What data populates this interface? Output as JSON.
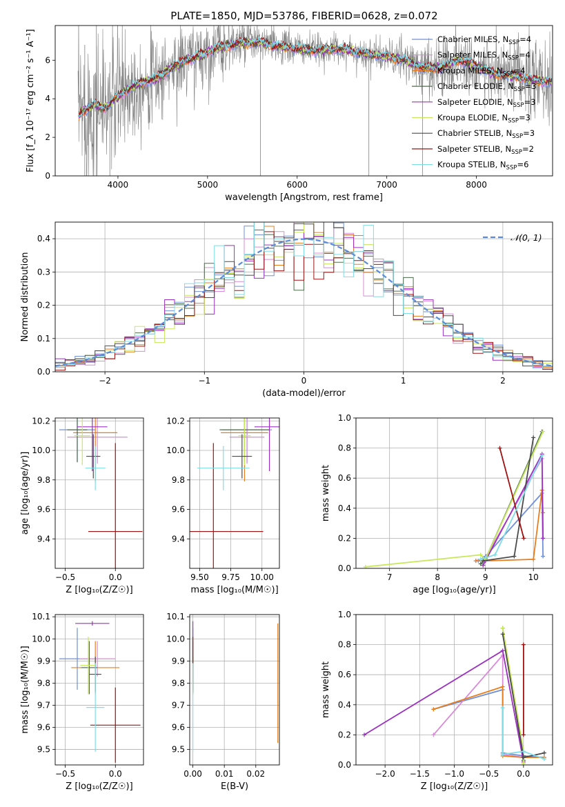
{
  "figure_title": "PLATE=1850, MJD=53786, FIBERID=0628, z=0.072",
  "colors": {
    "Chabrier MILES": "#6f8fd8",
    "Salpeter MILES": "#d98ad9",
    "Kroupa MILES": "#e87d1e",
    "Chabrier ELODIE": "#4d6b4d",
    "Salpeter ELODIE": "#9b30c0",
    "Kroupa ELODIE": "#c8e85a",
    "Chabrier STELIB": "#4a4a4a",
    "Salpeter STELIB": "#a01010",
    "Kroupa STELIB": "#7fdde8",
    "spectrum": "#808080",
    "normal": "#5b8bd8"
  },
  "chart_data": [
    {
      "id": "spectrum",
      "type": "line",
      "title": "PLATE=1850, MJD=53786, FIBERID=0628, z=0.072",
      "xlabel": "wavelength [Angstrom, rest frame]",
      "ylabel": "Flux [f_λ 10⁻¹⁷ erg cm⁻² s⁻¹ A⁻¹]",
      "xlim": [
        3300,
        8850
      ],
      "ylim": [
        0,
        7.8
      ],
      "xticks": [
        "4000",
        "5000",
        "6000",
        "7000",
        "8000"
      ],
      "yticks": [
        "0",
        "2",
        "4",
        "6"
      ],
      "grid": false,
      "legend_position": "top-right",
      "legend": [
        "Chabrier MILES, N_SSP=4",
        "Salpeter MILES, N_SSP=4",
        "Kroupa MILES, N_SSP=4",
        "Chabrier ELODIE, N_SSP=3",
        "Salpeter ELODIE, N_SSP=3",
        "Kroupa ELODIE, N_SSP=3",
        "Chabrier STELIB, N_SSP=3",
        "Salpeter STELIB, N_SSP=2",
        "Kroupa STELIB, N_SSP=6"
      ],
      "continuum": {
        "x": [
          3560,
          3650,
          3750,
          3850,
          3950,
          4050,
          4150,
          4300,
          4450,
          4600,
          4750,
          4900,
          5000,
          5100,
          5250,
          5400,
          5600,
          5800,
          6000,
          6200,
          6400,
          6600,
          6800,
          7000,
          7200,
          7400,
          7600,
          7800,
          8000,
          8200,
          8400,
          8600,
          8800
        ],
        "y": [
          3.1,
          3.5,
          3.7,
          3.5,
          3.9,
          4.3,
          4.6,
          4.9,
          5.1,
          5.6,
          6.0,
          6.2,
          6.4,
          6.6,
          6.8,
          6.9,
          6.9,
          6.7,
          6.6,
          6.5,
          6.6,
          6.5,
          6.3,
          6.2,
          6.0,
          5.6,
          5.6,
          6.0,
          5.7,
          5.3,
          5.2,
          5.0,
          4.9
        ]
      },
      "noise_amplitude": {
        "x": [
          3550,
          4000,
          4300,
          5000,
          5500,
          6500,
          7000,
          7500,
          8800
        ],
        "y": [
          2.4,
          2.0,
          1.3,
          1.0,
          0.6,
          0.4,
          0.5,
          0.8,
          1.2
        ]
      },
      "spikes": [
        {
          "x": 3630,
          "ymin": 0.0,
          "ymax": 6.8
        },
        {
          "x": 3760,
          "ymin": 0.0,
          "ymax": 7.8
        },
        {
          "x": 3910,
          "ymin": 0.0,
          "ymax": 5.9
        },
        {
          "x": 5590,
          "ymin": 0.0,
          "ymax": 7.0
        },
        {
          "x": 6800,
          "ymin": 0.0,
          "ymax": 6.2
        },
        {
          "x": 7400,
          "ymin": 0.0,
          "ymax": 5.6
        }
      ]
    },
    {
      "id": "residuals",
      "type": "histogram",
      "xlabel": "(data-model)/error",
      "ylabel": "Normed distribution",
      "xlim": [
        -2.5,
        2.5
      ],
      "ylim": [
        0,
        0.45
      ],
      "xticks": [
        "−2",
        "−1",
        "0",
        "1",
        "2"
      ],
      "yticks": [
        "0.0",
        "0.1",
        "0.2",
        "0.3",
        "0.4"
      ],
      "grid": true,
      "legend_position": "top-right",
      "legend": [
        "𝒩(0, 1)"
      ],
      "bin_width": 0.1,
      "reference": "N(0,1)"
    },
    {
      "id": "age-vs-Z",
      "type": "scatter",
      "xlabel": "Z [log₁₀(Z/Z☉)]",
      "ylabel": "age  [log₁₀(age/yr)]",
      "xlim": [
        -0.6,
        0.28
      ],
      "ylim": [
        9.2,
        10.22
      ],
      "xticks": [
        "−0.5",
        "0.0"
      ],
      "yticks": [
        "9.4",
        "9.6",
        "9.8",
        "10.0",
        "10.2"
      ],
      "grid": true,
      "points": [
        {
          "model": "Chabrier MILES",
          "x": -0.38,
          "xerr": 0.18,
          "y": 10.14,
          "yerr": 0.22
        },
        {
          "model": "Salpeter MILES",
          "x": -0.18,
          "xerr": 0.3,
          "y": 10.09,
          "yerr": 0.18
        },
        {
          "model": "Kroupa MILES",
          "x": -0.2,
          "xerr": 0.22,
          "y": 10.12,
          "yerr": 0.33
        },
        {
          "model": "Chabrier ELODIE",
          "x": -0.38,
          "xerr": 0.1,
          "y": 10.14,
          "yerr": 0.22
        },
        {
          "model": "Salpeter ELODIE",
          "x": -0.23,
          "xerr": 0.15,
          "y": 10.16,
          "yerr": 0.3
        },
        {
          "model": "Kroupa ELODIE",
          "x": -0.33,
          "xerr": 0.08,
          "y": 10.1,
          "yerr": 0.2
        },
        {
          "model": "Chabrier STELIB",
          "x": -0.22,
          "xerr": 0.07,
          "y": 9.96,
          "yerr": 0.15
        },
        {
          "model": "Salpeter STELIB",
          "x": 0.0,
          "xerr": 0.27,
          "y": 9.45,
          "yerr": 0.6
        },
        {
          "model": "Kroupa STELIB",
          "x": -0.2,
          "xerr": 0.1,
          "y": 9.88,
          "yerr": 0.15
        }
      ]
    },
    {
      "id": "age-vs-mass",
      "type": "scatter",
      "xlabel": "mass [log₁₀(M/M☉)]",
      "ylabel": "",
      "xlim": [
        9.42,
        10.14
      ],
      "ylim": [
        9.2,
        10.22
      ],
      "xticks": [
        "9.50",
        "9.75",
        "10.00"
      ],
      "yticks": [
        "9.4",
        "9.6",
        "9.8",
        "10.0",
        "10.2"
      ],
      "grid": true,
      "points": [
        {
          "model": "Chabrier MILES",
          "x": 9.88,
          "xerr": 0.2,
          "y": 10.14,
          "yerr": 0.22
        },
        {
          "model": "Salpeter MILES",
          "x": 9.88,
          "xerr": 0.14,
          "y": 10.09,
          "yerr": 0.18
        },
        {
          "model": "Kroupa MILES",
          "x": 9.86,
          "xerr": 0.19,
          "y": 10.12,
          "yerr": 0.33
        },
        {
          "model": "Chabrier ELODIE",
          "x": 9.86,
          "xerr": 0.2,
          "y": 10.14,
          "yerr": 0.22
        },
        {
          "model": "Salpeter ELODIE",
          "x": 10.06,
          "xerr": 0.12,
          "y": 10.16,
          "yerr": 0.3
        },
        {
          "model": "Kroupa ELODIE",
          "x": 9.86,
          "xerr": 0.05,
          "y": 10.1,
          "yerr": 0.2
        },
        {
          "model": "Chabrier STELIB",
          "x": 9.84,
          "xerr": 0.08,
          "y": 9.96,
          "yerr": 0.15
        },
        {
          "model": "Salpeter STELIB",
          "x": 9.61,
          "xerr": 0.4,
          "y": 9.45,
          "yerr": 0.6
        },
        {
          "model": "Kroupa STELIB",
          "x": 9.69,
          "xerr": 0.21,
          "y": 9.88,
          "yerr": 0.15
        }
      ]
    },
    {
      "id": "weight-vs-age",
      "type": "line",
      "xlabel": "age  [log₁₀(age/yr)]",
      "ylabel": "mass weight",
      "xlim": [
        6.3,
        10.4
      ],
      "ylim": [
        0,
        1.0
      ],
      "xticks": [
        "7",
        "8",
        "9",
        "10"
      ],
      "yticks": [
        "0.0",
        "0.2",
        "0.4",
        "0.6",
        "0.8",
        "1.0"
      ],
      "grid": true,
      "series": [
        {
          "model": "Chabrier MILES",
          "x": [
            8.85,
            9.0,
            10.18,
            10.2
          ],
          "y": [
            0.05,
            0.08,
            0.5,
            0.08
          ]
        },
        {
          "model": "Salpeter MILES",
          "x": [
            8.8,
            9.0,
            10.18,
            10.2
          ],
          "y": [
            0.05,
            0.07,
            0.73,
            0.2
          ]
        },
        {
          "model": "Kroupa MILES",
          "x": [
            8.8,
            9.0,
            10.0,
            10.18,
            10.2
          ],
          "y": [
            0.05,
            0.05,
            0.06,
            0.52,
            0.37
          ]
        },
        {
          "model": "Chabrier ELODIE",
          "x": [
            8.9,
            9.0,
            10.18
          ],
          "y": [
            0.03,
            0.06,
            0.91
          ]
        },
        {
          "model": "Salpeter ELODIE",
          "x": [
            8.95,
            9.0,
            10.18,
            10.2
          ],
          "y": [
            0.02,
            0.05,
            0.76,
            0.2
          ]
        },
        {
          "model": "Kroupa ELODIE",
          "x": [
            6.5,
            8.9,
            9.0,
            10.2
          ],
          "y": [
            0.01,
            0.09,
            0.06,
            0.91
          ]
        },
        {
          "model": "Chabrier STELIB",
          "x": [
            8.95,
            9.6,
            10.0
          ],
          "y": [
            0.05,
            0.08,
            0.87
          ]
        },
        {
          "model": "Salpeter STELIB",
          "x": [
            9.3,
            9.8
          ],
          "y": [
            0.8,
            0.2
          ]
        },
        {
          "model": "Kroupa STELIB",
          "x": [
            8.9,
            9.0,
            9.2,
            10.18
          ],
          "y": [
            0.06,
            0.07,
            0.09,
            0.75
          ]
        }
      ]
    },
    {
      "id": "mass-vs-Z",
      "type": "scatter",
      "xlabel": "Z [log₁₀(Z/Z☉)]",
      "ylabel": "mass [log₁₀(M/M☉)]",
      "xlim": [
        -0.6,
        0.28
      ],
      "ylim": [
        9.43,
        10.11
      ],
      "xticks": [
        "−0.5",
        "0.0"
      ],
      "yticks": [
        "9.5",
        "9.6",
        "9.7",
        "9.8",
        "9.9",
        "10.0",
        "10.1"
      ],
      "grid": true,
      "points": [
        {
          "model": "Chabrier MILES",
          "x": -0.38,
          "xerr": 0.18,
          "y": 9.91,
          "yerr": 0.14
        },
        {
          "model": "Salpeter MILES",
          "x": -0.18,
          "xerr": 0.18,
          "y": 9.91,
          "yerr": 0.08
        },
        {
          "model": "Kroupa MILES",
          "x": -0.2,
          "xerr": 0.24,
          "y": 9.87,
          "yerr": 0.12
        },
        {
          "model": "Chabrier ELODIE",
          "x": -0.26,
          "xerr": 0.08,
          "y": 9.87,
          "yerr": 0.12
        },
        {
          "model": "Salpeter ELODIE",
          "x": -0.23,
          "xerr": 0.17,
          "y": 10.07,
          "yerr": 0.01
        },
        {
          "model": "Kroupa ELODIE",
          "x": -0.27,
          "xerr": 0.08,
          "y": 9.88,
          "yerr": 0.13
        },
        {
          "model": "Chabrier STELIB",
          "x": -0.2,
          "xerr": 0.06,
          "y": 9.84,
          "yerr": 0.08
        },
        {
          "model": "Salpeter STELIB",
          "x": 0.0,
          "xerr": 0.25,
          "y": 9.61,
          "yerr": 0.17
        },
        {
          "model": "Kroupa STELIB",
          "x": -0.2,
          "xerr": 0.09,
          "y": 9.69,
          "yerr": 0.2
        }
      ]
    },
    {
      "id": "mass-vs-ebv",
      "type": "scatter",
      "xlabel": "E(B-V)",
      "ylabel": "",
      "xlim": [
        -0.001,
        0.0275
      ],
      "ylim": [
        9.43,
        10.11
      ],
      "xticks": [
        "0.00",
        "0.01",
        "0.02"
      ],
      "yticks": [
        "9.5",
        "9.6",
        "9.7",
        "9.8",
        "9.9",
        "10.0",
        "10.1"
      ],
      "grid": true,
      "points": [
        {
          "model": "Chabrier MILES",
          "x": 0.0,
          "xerr": 0.0,
          "y": 9.91,
          "yerr": 0.14
        },
        {
          "model": "Salpeter MILES",
          "x": 0.0,
          "xerr": 0.0,
          "y": 9.91,
          "yerr": 0.08
        },
        {
          "model": "Kroupa MILES",
          "x": 0.027,
          "xerr": 0.0,
          "y": 9.8,
          "yerr": 0.27
        },
        {
          "model": "Chabrier ELODIE",
          "x": 0.0,
          "xerr": 0.0,
          "y": 9.87,
          "yerr": 0.12
        },
        {
          "model": "Salpeter ELODIE",
          "x": 0.0,
          "xerr": 0.0,
          "y": 10.0,
          "yerr": 0.08
        },
        {
          "model": "Kroupa ELODIE",
          "x": 0.0,
          "xerr": 0.0,
          "y": 9.88,
          "yerr": 0.13
        },
        {
          "model": "Chabrier STELIB",
          "x": 0.0,
          "xerr": 0.0,
          "y": 9.84,
          "yerr": 0.08
        },
        {
          "model": "Salpeter STELIB",
          "x": 0.0,
          "xerr": 0.0,
          "y": 9.95,
          "yerr": 0.06
        },
        {
          "model": "Kroupa STELIB",
          "x": 0.0,
          "xerr": 0.0,
          "y": 9.69,
          "yerr": 0.2
        }
      ]
    },
    {
      "id": "weight-vs-Z",
      "type": "line",
      "xlabel": "Z [log₁₀(Z/Z☉)]",
      "ylabel": "mass weight",
      "xlim": [
        -2.42,
        0.42
      ],
      "ylim": [
        0,
        1.0
      ],
      "xticks": [
        "−2.0",
        "−1.5",
        "−1.0",
        "−0.5",
        "0.0"
      ],
      "yticks": [
        "0.0",
        "0.2",
        "0.4",
        "0.6",
        "0.8",
        "1.0"
      ],
      "grid": true,
      "series": [
        {
          "model": "Chabrier MILES",
          "x": [
            -1.3,
            -0.3,
            -0.3,
            0.0,
            0.3
          ],
          "y": [
            0.37,
            0.5,
            0.08,
            0.06,
            0.05
          ]
        },
        {
          "model": "Salpeter MILES",
          "x": [
            -1.3,
            -0.3,
            -0.3,
            0.0
          ],
          "y": [
            0.2,
            0.73,
            0.07,
            0.05
          ]
        },
        {
          "model": "Kroupa MILES",
          "x": [
            -1.3,
            -0.3,
            -0.3,
            0.0,
            0.3
          ],
          "y": [
            0.37,
            0.52,
            0.06,
            0.05,
            0.05
          ]
        },
        {
          "model": "Chabrier ELODIE",
          "x": [
            -0.3,
            0.0,
            0.0
          ],
          "y": [
            0.91,
            0.03,
            0.06
          ]
        },
        {
          "model": "Salpeter ELODIE",
          "x": [
            -2.3,
            -0.3,
            0.0
          ],
          "y": [
            0.2,
            0.76,
            0.02
          ]
        },
        {
          "model": "Kroupa ELODIE",
          "x": [
            -0.3,
            0.0,
            0.0
          ],
          "y": [
            0.91,
            0.09,
            0.01
          ]
        },
        {
          "model": "Chabrier STELIB",
          "x": [
            -0.3,
            0.0,
            0.3
          ],
          "y": [
            0.87,
            0.05,
            0.08
          ]
        },
        {
          "model": "Salpeter STELIB",
          "x": [
            0.0,
            0.0
          ],
          "y": [
            0.8,
            0.2
          ]
        },
        {
          "model": "Kroupa STELIB",
          "x": [
            -0.3,
            -0.3,
            0.0,
            0.3
          ],
          "y": [
            0.38,
            0.07,
            0.09,
            0.04
          ]
        }
      ]
    }
  ]
}
